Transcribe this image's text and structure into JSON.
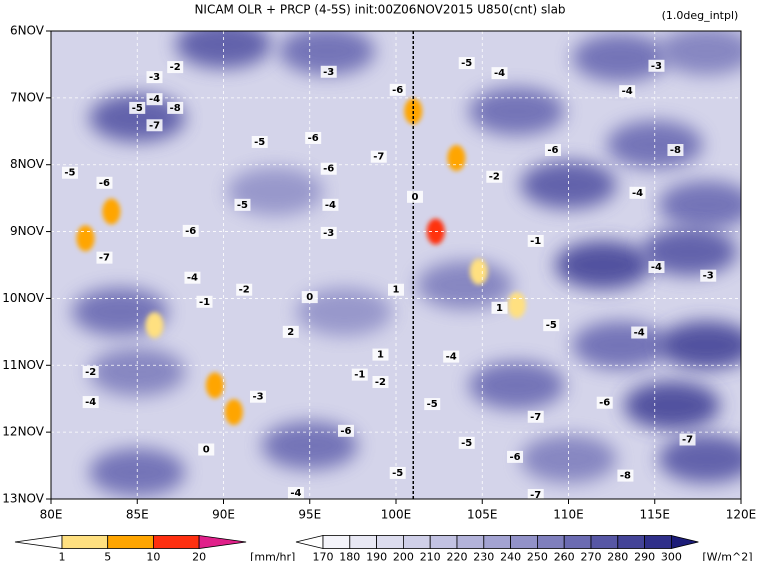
{
  "chart_data": {
    "type": "hovmoller",
    "title": "NICAM  OLR + PRCP (4-5S) init:00Z06NOV2015 U850(cnt) slab",
    "subtitle": "(1.0deg_intpl)",
    "xlim": [
      80,
      120
    ],
    "xticks": [
      {
        "value": 80,
        "label": "80E"
      },
      {
        "value": 85,
        "label": "85E"
      },
      {
        "value": 90,
        "label": "90E"
      },
      {
        "value": 95,
        "label": "95E"
      },
      {
        "value": 100,
        "label": "100E"
      },
      {
        "value": 105,
        "label": "105E"
      },
      {
        "value": 110,
        "label": "110E"
      },
      {
        "value": 115,
        "label": "115E"
      },
      {
        "value": 120,
        "label": "120E"
      }
    ],
    "ylim": [
      6,
      13
    ],
    "yticks": [
      {
        "value": 6,
        "label": "6NOV"
      },
      {
        "value": 7,
        "label": "7NOV"
      },
      {
        "value": 8,
        "label": "8NOV"
      },
      {
        "value": 9,
        "label": "9NOV"
      },
      {
        "value": 10,
        "label": "10NOV"
      },
      {
        "value": 11,
        "label": "11NOV"
      },
      {
        "value": 12,
        "label": "12NOV"
      },
      {
        "value": 13,
        "label": "13NOV"
      }
    ],
    "grid": true,
    "vline": 101,
    "precip_colorbar": {
      "levels": [
        1,
        5,
        10,
        20
      ],
      "units": "[mm/hr]",
      "colors": [
        "#ffffff",
        "#ffe080",
        "#ffa500",
        "#ff3010",
        "#e0208a"
      ]
    },
    "olr_colorbar": {
      "levels": [
        170,
        180,
        190,
        200,
        210,
        220,
        230,
        240,
        250,
        260,
        270,
        280,
        290,
        300
      ],
      "units": "[W/m^2]",
      "colors": [
        "#ffffff",
        "#f4f4fa",
        "#e8e8f4",
        "#dcdcee",
        "#cfcfe8",
        "#c2c2e2",
        "#b3b3da",
        "#a3a3d2",
        "#9292c8",
        "#7f7fbd",
        "#6b6bb2",
        "#5757a5",
        "#444498",
        "#30308a",
        "#1c1c78"
      ]
    },
    "olr_features": [
      {
        "x": 90,
        "y": 6.2,
        "value": 270
      },
      {
        "x": 96,
        "y": 6.3,
        "value": 260
      },
      {
        "x": 113,
        "y": 6.4,
        "value": 260
      },
      {
        "x": 118,
        "y": 6.3,
        "value": 250
      },
      {
        "x": 85,
        "y": 7.3,
        "value": 270
      },
      {
        "x": 107,
        "y": 7.2,
        "value": 260
      },
      {
        "x": 115,
        "y": 7.7,
        "value": 260
      },
      {
        "x": 110,
        "y": 8.3,
        "value": 270
      },
      {
        "x": 118,
        "y": 8.6,
        "value": 260
      },
      {
        "x": 112,
        "y": 9.5,
        "value": 280
      },
      {
        "x": 117,
        "y": 9.3,
        "value": 270
      },
      {
        "x": 84,
        "y": 10.2,
        "value": 260
      },
      {
        "x": 97,
        "y": 10.2,
        "value": 240
      },
      {
        "x": 113,
        "y": 10.7,
        "value": 260
      },
      {
        "x": 118,
        "y": 10.7,
        "value": 280
      },
      {
        "x": 85,
        "y": 11.1,
        "value": 250
      },
      {
        "x": 107,
        "y": 11.3,
        "value": 260
      },
      {
        "x": 116,
        "y": 11.6,
        "value": 280
      },
      {
        "x": 95,
        "y": 12.2,
        "value": 260
      },
      {
        "x": 110,
        "y": 12.4,
        "value": 250
      },
      {
        "x": 118,
        "y": 12.4,
        "value": 270
      },
      {
        "x": 85,
        "y": 12.6,
        "value": 260
      },
      {
        "x": 104,
        "y": 9.8,
        "value": 250
      },
      {
        "x": 93,
        "y": 8.4,
        "value": 240
      }
    ],
    "precip_features": [
      {
        "x": 82,
        "y": 9.1,
        "value": 5
      },
      {
        "x": 83.5,
        "y": 8.7,
        "value": 5
      },
      {
        "x": 101,
        "y": 7.2,
        "value": 5
      },
      {
        "x": 102.3,
        "y": 9.0,
        "value": 10
      },
      {
        "x": 89.5,
        "y": 11.3,
        "value": 5
      },
      {
        "x": 90.6,
        "y": 11.7,
        "value": 5
      },
      {
        "x": 103.5,
        "y": 7.9,
        "value": 5
      },
      {
        "x": 104.8,
        "y": 9.6,
        "value": 1
      },
      {
        "x": 86,
        "y": 10.4,
        "value": 1
      },
      {
        "x": 107,
        "y": 10.1,
        "value": 1
      }
    ],
    "contour_labels": [
      {
        "x": 87.2,
        "y": 6.54,
        "value": -2
      },
      {
        "x": 86.0,
        "y": 6.69,
        "value": -3
      },
      {
        "x": 86.0,
        "y": 7.02,
        "value": -4
      },
      {
        "x": 85.0,
        "y": 7.15,
        "value": -5
      },
      {
        "x": 87.2,
        "y": 7.15,
        "value": -8
      },
      {
        "x": 86.0,
        "y": 7.41,
        "value": -7
      },
      {
        "x": 96.1,
        "y": 6.61,
        "value": -3
      },
      {
        "x": 100.1,
        "y": 6.88,
        "value": -6
      },
      {
        "x": 104.1,
        "y": 6.48,
        "value": -5
      },
      {
        "x": 106.0,
        "y": 6.63,
        "value": -4
      },
      {
        "x": 115.1,
        "y": 6.52,
        "value": -3
      },
      {
        "x": 113.4,
        "y": 6.9,
        "value": -4
      },
      {
        "x": 92.1,
        "y": 7.66,
        "value": -5
      },
      {
        "x": 95.2,
        "y": 7.6,
        "value": -6
      },
      {
        "x": 99.0,
        "y": 7.88,
        "value": -7
      },
      {
        "x": 96.1,
        "y": 8.06,
        "value": -6
      },
      {
        "x": 81.1,
        "y": 8.12,
        "value": -5
      },
      {
        "x": 83.1,
        "y": 8.27,
        "value": -6
      },
      {
        "x": 116.2,
        "y": 7.78,
        "value": -8
      },
      {
        "x": 105.7,
        "y": 8.18,
        "value": -2
      },
      {
        "x": 109.1,
        "y": 7.78,
        "value": -6
      },
      {
        "x": 114.0,
        "y": 8.42,
        "value": -4
      },
      {
        "x": 91.1,
        "y": 8.6,
        "value": -5
      },
      {
        "x": 96.2,
        "y": 8.6,
        "value": -4
      },
      {
        "x": 88.1,
        "y": 8.99,
        "value": -6
      },
      {
        "x": 83.1,
        "y": 9.39,
        "value": -7
      },
      {
        "x": 96.1,
        "y": 9.02,
        "value": -3
      },
      {
        "x": 101.1,
        "y": 8.48,
        "value": 0
      },
      {
        "x": 108.1,
        "y": 9.14,
        "value": -1
      },
      {
        "x": 115.1,
        "y": 9.53,
        "value": -4
      },
      {
        "x": 118.1,
        "y": 9.66,
        "value": -3
      },
      {
        "x": 88.2,
        "y": 9.69,
        "value": -4
      },
      {
        "x": 91.2,
        "y": 9.87,
        "value": -2
      },
      {
        "x": 88.9,
        "y": 10.05,
        "value": -1
      },
      {
        "x": 95.0,
        "y": 9.98,
        "value": 0
      },
      {
        "x": 100.0,
        "y": 9.87,
        "value": 1
      },
      {
        "x": 106.0,
        "y": 10.14,
        "value": 1
      },
      {
        "x": 93.9,
        "y": 10.5,
        "value": 2
      },
      {
        "x": 109.0,
        "y": 10.4,
        "value": -5
      },
      {
        "x": 114.1,
        "y": 10.51,
        "value": -4
      },
      {
        "x": 103.2,
        "y": 10.87,
        "value": -4
      },
      {
        "x": 82.3,
        "y": 11.1,
        "value": -2
      },
      {
        "x": 82.3,
        "y": 11.55,
        "value": -4
      },
      {
        "x": 99.1,
        "y": 10.84,
        "value": 1
      },
      {
        "x": 97.9,
        "y": 11.14,
        "value": -1
      },
      {
        "x": 99.1,
        "y": 11.25,
        "value": -2
      },
      {
        "x": 102.1,
        "y": 11.58,
        "value": -5
      },
      {
        "x": 108.1,
        "y": 11.77,
        "value": -7
      },
      {
        "x": 112.1,
        "y": 11.56,
        "value": -6
      },
      {
        "x": 92.0,
        "y": 11.47,
        "value": -3
      },
      {
        "x": 89.0,
        "y": 12.26,
        "value": 0
      },
      {
        "x": 97.1,
        "y": 11.98,
        "value": -6
      },
      {
        "x": 116.9,
        "y": 12.11,
        "value": -7
      },
      {
        "x": 104.1,
        "y": 12.16,
        "value": -5
      },
      {
        "x": 106.9,
        "y": 12.37,
        "value": -6
      },
      {
        "x": 113.3,
        "y": 12.65,
        "value": -8
      },
      {
        "x": 100.1,
        "y": 12.61,
        "value": -5
      },
      {
        "x": 108.1,
        "y": 12.94,
        "value": -7
      },
      {
        "x": 94.2,
        "y": 12.91,
        "value": -4
      }
    ]
  }
}
